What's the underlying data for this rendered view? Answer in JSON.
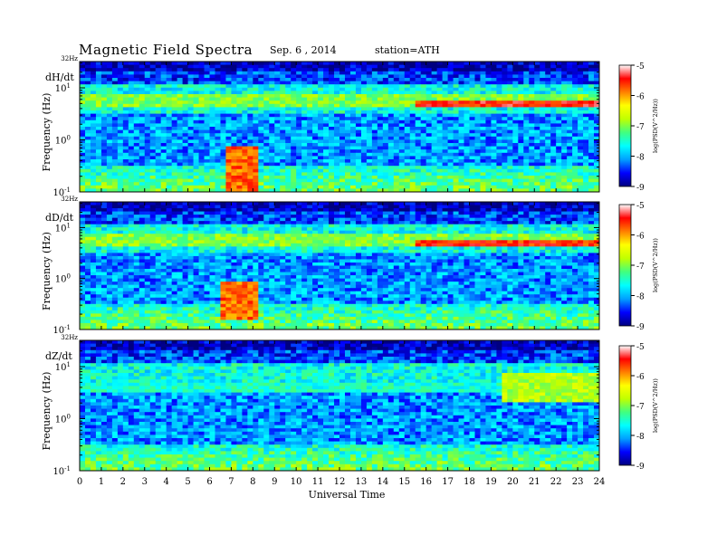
{
  "header": {
    "title": "Magnetic Field Spectra",
    "date": "Sep. 6  , 2014",
    "station": "station=ATH"
  },
  "colorbar": {
    "ticks": [
      "-5",
      "-6",
      "-7",
      "-8",
      "-9"
    ],
    "label": "log(PSD(V^2/Hz))",
    "colors": [
      "#000080",
      "#0000ff",
      "#00a0ff",
      "#00ffff",
      "#40ff80",
      "#c0ff00",
      "#ffff00",
      "#ff8000",
      "#ff0000",
      "#ffffff"
    ]
  },
  "chart_data": [
    {
      "type": "heatmap",
      "title": "dH/dt",
      "xlabel": "Universal Time",
      "ylabel": "Frequency (Hz)",
      "top_label": "32Hz",
      "xlim": [
        0,
        24
      ],
      "ylim": [
        0.1,
        32
      ],
      "y_scale": "log",
      "x_ticks": [
        0,
        1,
        2,
        3,
        4,
        5,
        6,
        7,
        8,
        9,
        10,
        11,
        12,
        13,
        14,
        15,
        16,
        17,
        18,
        19,
        20,
        21,
        22,
        23,
        24
      ],
      "y_ticks": [
        "10^-1",
        "10^0",
        "10^1"
      ],
      "clim": [
        -9,
        -5
      ],
      "features": [
        {
          "x": [
            0,
            24
          ],
          "y": [
            4,
            8
          ],
          "level": -7.0
        },
        {
          "x": [
            15.5,
            24
          ],
          "y": [
            4,
            6
          ],
          "level": -5.5
        },
        {
          "x": [
            6.8,
            8.2
          ],
          "y": [
            0.1,
            0.8
          ],
          "level": -5.8
        }
      ]
    },
    {
      "type": "heatmap",
      "title": "dD/dt",
      "xlabel": "Universal Time",
      "ylabel": "Frequency (Hz)",
      "top_label": "32Hz",
      "xlim": [
        0,
        24
      ],
      "ylim": [
        0.1,
        32
      ],
      "y_scale": "log",
      "x_ticks": [
        0,
        1,
        2,
        3,
        4,
        5,
        6,
        7,
        8,
        9,
        10,
        11,
        12,
        13,
        14,
        15,
        16,
        17,
        18,
        19,
        20,
        21,
        22,
        23,
        24
      ],
      "y_ticks": [
        "10^-1",
        "10^0",
        "10^1"
      ],
      "clim": [
        -9,
        -5
      ],
      "features": [
        {
          "x": [
            0,
            24
          ],
          "y": [
            4,
            8
          ],
          "level": -7.0
        },
        {
          "x": [
            15.5,
            24
          ],
          "y": [
            4,
            6
          ],
          "level": -5.6
        },
        {
          "x": [
            6.5,
            8.2
          ],
          "y": [
            0.15,
            0.9
          ],
          "level": -5.8
        }
      ]
    },
    {
      "type": "heatmap",
      "title": "dZ/dt",
      "xlabel": "Universal Time",
      "ylabel": "Frequency (Hz)",
      "top_label": "32Hz",
      "xlim": [
        0,
        24
      ],
      "ylim": [
        0.1,
        32
      ],
      "y_scale": "log",
      "x_ticks": [
        0,
        1,
        2,
        3,
        4,
        5,
        6,
        7,
        8,
        9,
        10,
        11,
        12,
        13,
        14,
        15,
        16,
        17,
        18,
        19,
        20,
        21,
        22,
        23,
        24
      ],
      "y_ticks": [
        "10^-1",
        "10^0",
        "10^1"
      ],
      "clim": [
        -9,
        -5
      ],
      "features": [
        {
          "x": [
            0,
            24
          ],
          "y": [
            3,
            5
          ],
          "level": -7.5
        },
        {
          "x": [
            19.5,
            24
          ],
          "y": [
            2,
            8
          ],
          "level": -6.8
        }
      ]
    }
  ]
}
